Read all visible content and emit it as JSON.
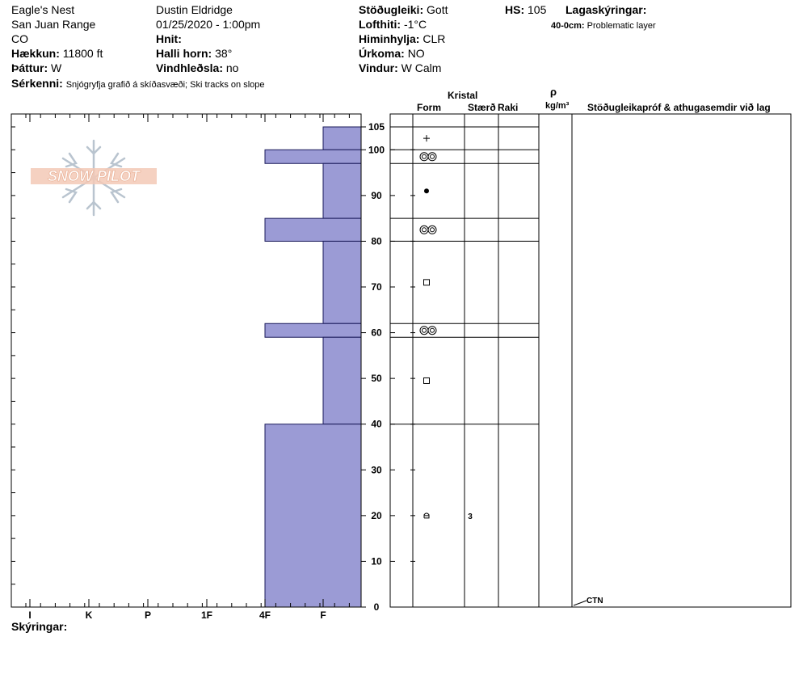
{
  "header": {
    "site": "Eagle's Nest",
    "range": "San Juan Range",
    "state": "CO",
    "elevation_label": "Hækkun:",
    "elevation_value": "11800 ft",
    "aspect_label": "Þáttur:",
    "aspect_value": "W",
    "features_label": "Sérkenni:",
    "features_value": "Snjógryfja grafið á skíðasvæði;  Ski tracks on slope",
    "observer": "Dustin Eldridge",
    "datetime": "01/25/2020 - 1:00pm",
    "coords_label": "Hnit:",
    "slope_label": "Halli horn:",
    "slope_value": "38°",
    "wind_loading_label": "Vindhleðsla:",
    "wind_loading_value": "no",
    "stability_label": "Stöðugleiki:",
    "stability_value": "Gott",
    "air_temp_label": "Lofthiti:",
    "air_temp_value": "-1°C",
    "sky_label": "Himinhylja:",
    "sky_value": "CLR",
    "precip_label": "Úrkoma:",
    "precip_value": "NO",
    "wind_label": "Vindur:",
    "wind_value": "W Calm",
    "hs_label": "HS:",
    "hs_value": "105",
    "layer_notes_label": "Lagaskýringar:",
    "layer_note_depth": "40-0cm:",
    "layer_note_text": "Problematic layer"
  },
  "columns": {
    "crystal": "Kristal",
    "form": "Form",
    "size": "Stærð",
    "moisture": "Raki",
    "rho": "ρ",
    "density_unit": "kg/m³",
    "tests": "Stöðugleikapróf & athugasemdir við lag"
  },
  "legend_label": "Skýringar:",
  "logo_text": "SNOW PILOT",
  "test_annotation": "CTN",
  "chart_data": {
    "type": "bar",
    "orientation": "horizontal",
    "x_categories": [
      "I",
      "K",
      "P",
      "1F",
      "4F",
      "F"
    ],
    "y_ticks": [
      0,
      10,
      20,
      30,
      40,
      50,
      60,
      70,
      80,
      90,
      100,
      105
    ],
    "ylim": [
      0,
      105
    ],
    "hardness_layers": [
      {
        "top": 105,
        "bottom": 100,
        "hardness": "F"
      },
      {
        "top": 100,
        "bottom": 97,
        "hardness": "4F"
      },
      {
        "top": 97,
        "bottom": 85,
        "hardness": "F"
      },
      {
        "top": 85,
        "bottom": 80,
        "hardness": "4F"
      },
      {
        "top": 80,
        "bottom": 62,
        "hardness": "F"
      },
      {
        "top": 62,
        "bottom": 59,
        "hardness": "4F"
      },
      {
        "top": 59,
        "bottom": 40,
        "hardness": "F"
      },
      {
        "top": 40,
        "bottom": 0,
        "hardness": "4F"
      }
    ],
    "layer_boundaries": [
      105,
      100,
      97,
      85,
      80,
      62,
      59,
      40
    ],
    "grain_symbols": [
      {
        "depth": 102.5,
        "form": "plus",
        "size": ""
      },
      {
        "depth": 98.5,
        "form": "double-ring",
        "size": ""
      },
      {
        "depth": 91,
        "form": "dot",
        "size": ""
      },
      {
        "depth": 82.5,
        "form": "double-ring",
        "size": ""
      },
      {
        "depth": 71,
        "form": "square",
        "size": ""
      },
      {
        "depth": 60.5,
        "form": "double-ring",
        "size": ""
      },
      {
        "depth": 49.5,
        "form": "square",
        "size": ""
      },
      {
        "depth": 20,
        "form": "cup",
        "size": "3"
      }
    ],
    "test_depth": 0,
    "bar_color": "#9b9bd5"
  }
}
